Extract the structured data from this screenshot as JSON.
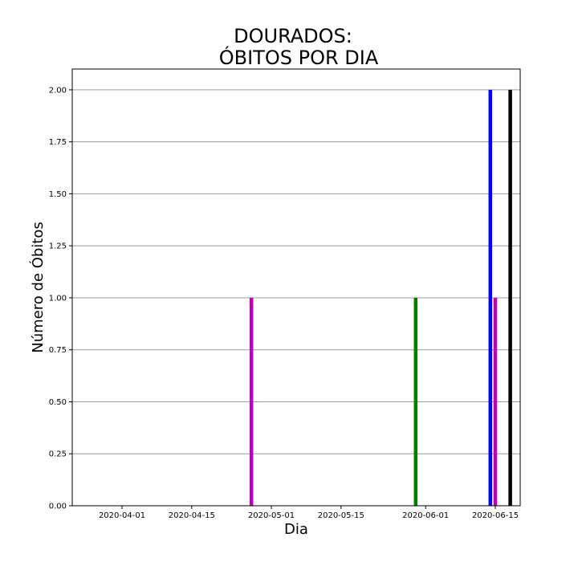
{
  "chart_data": {
    "type": "bar",
    "title_lines": [
      "DOURADOS:",
      "ÓBITOS POR DIA"
    ],
    "xlabel": "Dia",
    "ylabel": "Número de Óbitos",
    "x_ticks": [
      "2020-04-01",
      "2020-04-15",
      "2020-05-01",
      "2020-05-15",
      "2020-06-01",
      "2020-06-15"
    ],
    "y_ticks": [
      "0.00",
      "0.25",
      "0.50",
      "0.75",
      "1.00",
      "1.25",
      "1.50",
      "1.75",
      "2.00"
    ],
    "xlim": [
      "2020-03-22",
      "2020-06-20"
    ],
    "ylim": [
      0,
      2.1
    ],
    "grid": "horizontal",
    "bars": [
      {
        "date": "2020-04-27",
        "value": 1,
        "color": "#bf00bf"
      },
      {
        "date": "2020-05-30",
        "value": 1,
        "color": "#008000"
      },
      {
        "date": "2020-06-14",
        "value": 2,
        "color": "#0000ff"
      },
      {
        "date": "2020-06-15",
        "value": 1,
        "color": "#bf00bf"
      },
      {
        "date": "2020-06-18",
        "value": 2,
        "color": "#000000"
      }
    ]
  }
}
